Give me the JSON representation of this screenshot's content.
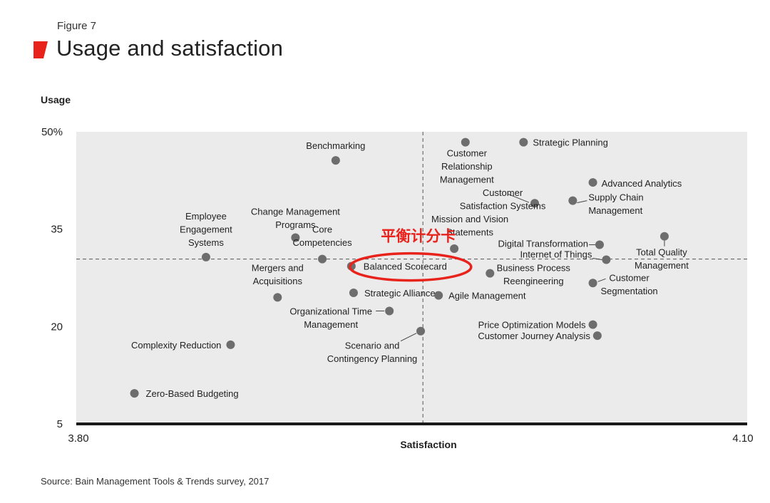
{
  "figure_label": "Figure 7",
  "title": "Usage and satisfaction",
  "source": "Source: Bain Management Tools & Trends survey, 2017",
  "annotation": {
    "text": "平衡计分卡",
    "target": "Balanced Scorecard",
    "color": "#e8231c"
  },
  "chart_data": {
    "type": "scatter",
    "title": "Usage and satisfaction",
    "xlabel": "Satisfaction",
    "ylabel": "Usage",
    "xlim": [
      3.8,
      4.1
    ],
    "ylim": [
      5,
      50
    ],
    "x_tick_labels": [
      "3.80",
      "4.10"
    ],
    "y_ticks": [
      {
        "value": 50,
        "label": "50%"
      },
      {
        "value": 35,
        "label": "35"
      },
      {
        "value": 20,
        "label": "20"
      },
      {
        "value": 5,
        "label": "5"
      }
    ],
    "reference_lines": {
      "x": 3.955,
      "y": 30.4
    },
    "point_color": "#6d6d6d",
    "plot_background": "#ebebeb",
    "points": [
      {
        "label": "Benchmarking",
        "x": 3.916,
        "y": 45.6
      },
      {
        "label": "Customer Relationship Management",
        "x": 3.974,
        "y": 48.4
      },
      {
        "label": "Strategic Planning",
        "x": 4.0,
        "y": 48.4
      },
      {
        "label": "Advanced Analytics",
        "x": 4.031,
        "y": 42.2
      },
      {
        "label": "Supply Chain Management",
        "x": 4.022,
        "y": 39.4
      },
      {
        "label": "Customer Satisfaction Systems",
        "x": 4.005,
        "y": 39.0
      },
      {
        "label": "Employee Engagement Systems",
        "x": 3.858,
        "y": 30.7
      },
      {
        "label": "Change Management Programs",
        "x": 3.898,
        "y": 33.7
      },
      {
        "label": "Core Competencies",
        "x": 3.91,
        "y": 30.4
      },
      {
        "label": "Balanced Scorecard",
        "x": 3.923,
        "y": 29.3
      },
      {
        "label": "Mission and Vision Statements",
        "x": 3.969,
        "y": 32.0
      },
      {
        "label": "Digital Transformation",
        "x": 4.034,
        "y": 32.6
      },
      {
        "label": "Internet of Things",
        "x": 4.037,
        "y": 30.3
      },
      {
        "label": "Total Quality Management",
        "x": 4.063,
        "y": 33.9
      },
      {
        "label": "Mergers and Acquisitions",
        "x": 3.89,
        "y": 24.5
      },
      {
        "label": "Strategic Alliances",
        "x": 3.924,
        "y": 25.2
      },
      {
        "label": "Business Process Reengineering",
        "x": 3.985,
        "y": 28.2
      },
      {
        "label": "Customer Segmentation",
        "x": 4.031,
        "y": 26.7
      },
      {
        "label": "Agile Management",
        "x": 3.962,
        "y": 24.8
      },
      {
        "label": "Organizational Time Management",
        "x": 3.94,
        "y": 22.4
      },
      {
        "label": "Scenario and Contingency Planning",
        "x": 3.954,
        "y": 19.3
      },
      {
        "label": "Price Optimization Models",
        "x": 4.031,
        "y": 20.3
      },
      {
        "label": "Customer Journey Analysis",
        "x": 4.033,
        "y": 18.6
      },
      {
        "label": "Complexity Reduction",
        "x": 3.869,
        "y": 17.2
      },
      {
        "label": "Zero-Based Budgeting",
        "x": 3.826,
        "y": 9.7
      }
    ]
  }
}
